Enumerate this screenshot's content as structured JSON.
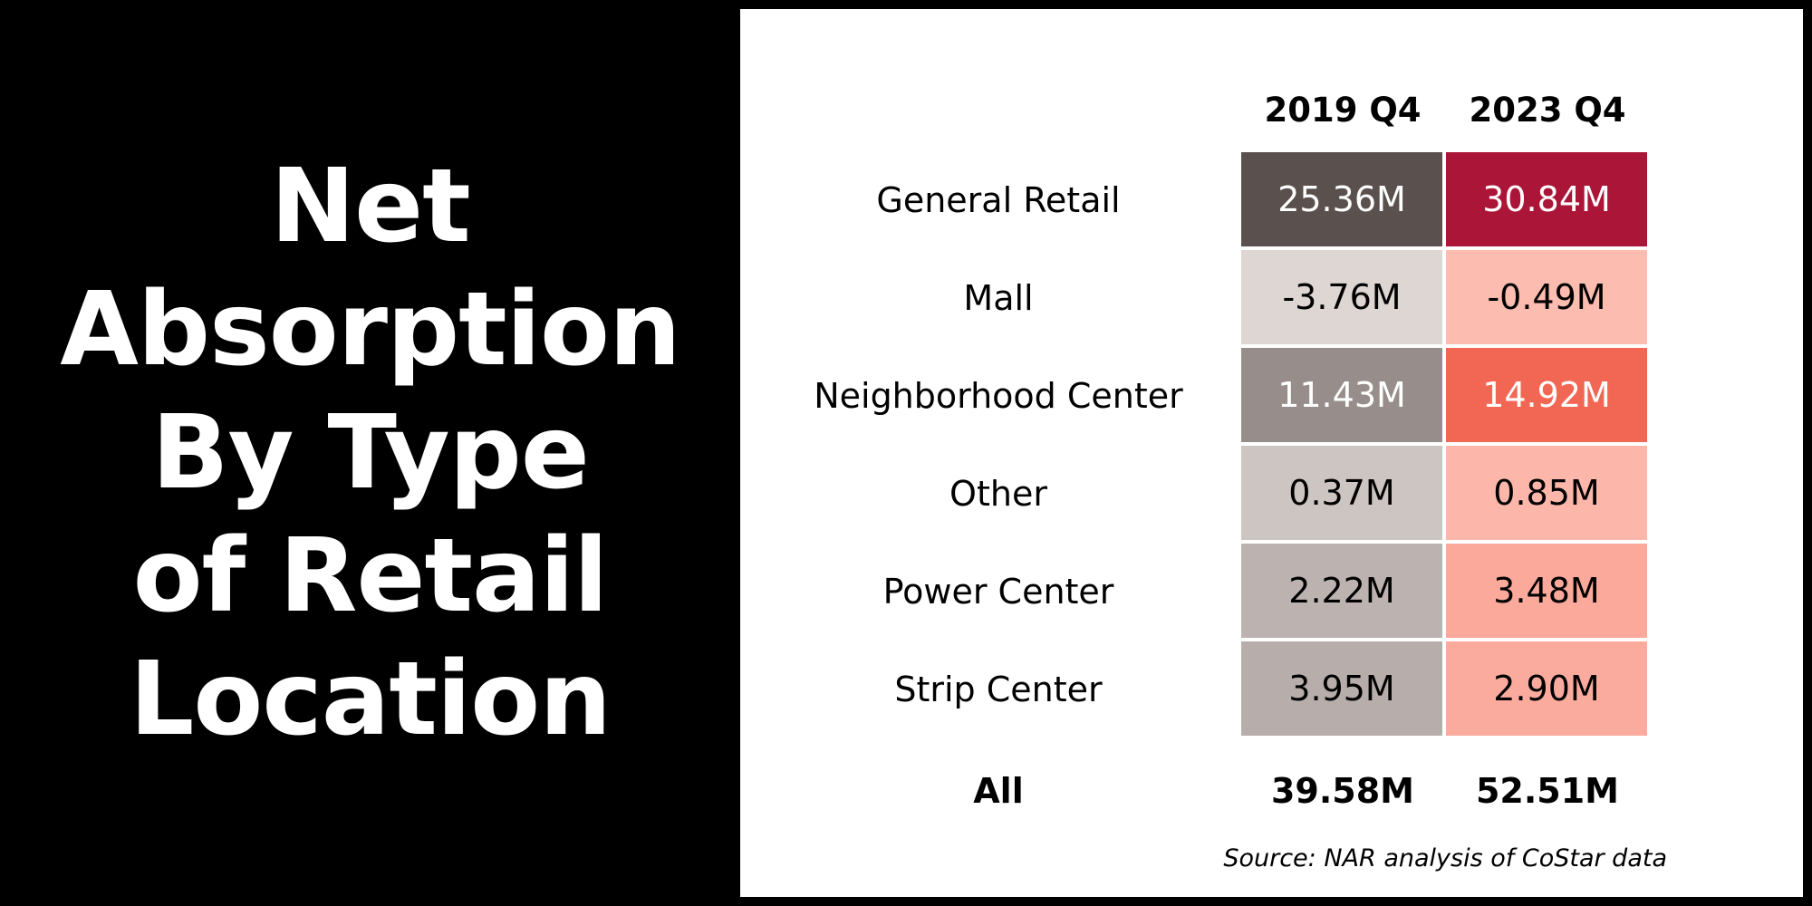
{
  "title": {
    "lines": [
      "Net",
      "Absorption",
      "By Type",
      "of Retail",
      "Location"
    ]
  },
  "chart_data": {
    "type": "table",
    "columns": [
      "2019 Q4",
      "2023 Q4"
    ],
    "rows": [
      {
        "label": "General Retail",
        "values": [
          "25.36M",
          "30.84M"
        ]
      },
      {
        "label": "Mall",
        "values": [
          "-3.76M",
          "-0.49M"
        ]
      },
      {
        "label": "Neighborhood Center",
        "values": [
          "11.43M",
          "14.92M"
        ]
      },
      {
        "label": "Other",
        "values": [
          "0.37M",
          "0.85M"
        ]
      },
      {
        "label": "Power Center",
        "values": [
          "2.22M",
          "3.48M"
        ]
      },
      {
        "label": "Strip Center",
        "values": [
          "3.95M",
          "2.90M"
        ]
      }
    ],
    "total": {
      "label": "All",
      "values": [
        "39.58M",
        "52.51M"
      ]
    },
    "cell_colors": [
      [
        "#5a504e",
        "#ab1538"
      ],
      [
        "#ddd6d3",
        "#fdbcb0"
      ],
      [
        "#978d8b",
        "#f26754"
      ],
      [
        "#cdc5c2",
        "#fdb7aa"
      ],
      [
        "#bcb3b1",
        "#fba99b"
      ],
      [
        "#b7adab",
        "#fbab9d"
      ]
    ],
    "cell_text_colors": [
      [
        "#ffffff",
        "#ffffff"
      ],
      [
        "#000000",
        "#000000"
      ],
      [
        "#ffffff",
        "#ffffff"
      ],
      [
        "#000000",
        "#000000"
      ],
      [
        "#000000",
        "#000000"
      ],
      [
        "#000000",
        "#000000"
      ]
    ],
    "source": "Source: NAR analysis of CoStar data"
  }
}
